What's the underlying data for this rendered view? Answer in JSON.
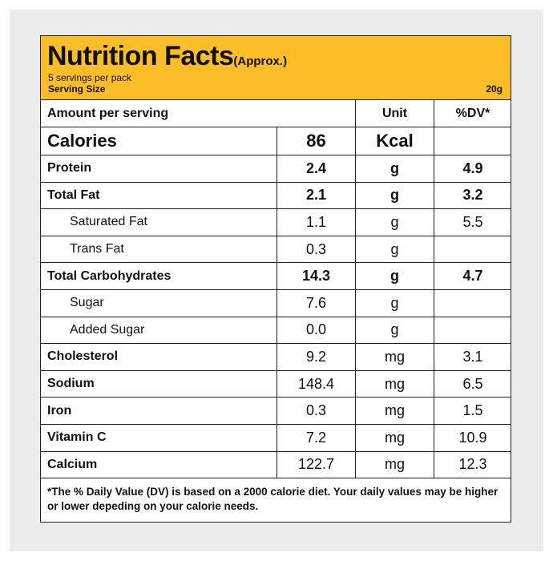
{
  "header": {
    "title": "Nutrition Facts",
    "title_suffix": "(Approx.)",
    "servings_per_pack": "5 servings per pack",
    "serving_size_label": "Serving Size",
    "serving_size_value": "20g",
    "accent_color": "#fbbd28"
  },
  "table": {
    "col_amount": "Amount per serving",
    "col_unit": "Unit",
    "col_dv": "%DV*",
    "calories": {
      "name": "Calories",
      "amount": "86",
      "unit": "Kcal",
      "dv": ""
    },
    "rows": [
      {
        "name": "Protein",
        "amount": "2.4",
        "unit": "g",
        "dv": "4.9"
      },
      {
        "name": "Total Fat",
        "amount": "2.1",
        "unit": "g",
        "dv": "3.2"
      },
      {
        "name": "Saturated Fat",
        "amount": "1.1",
        "unit": "g",
        "dv": "5.5"
      },
      {
        "name": "Trans Fat",
        "amount": "0.3",
        "unit": "g",
        "dv": ""
      },
      {
        "name": "Total Carbohydrates",
        "amount": "14.3",
        "unit": "g",
        "dv": "4.7"
      },
      {
        "name": "Sugar",
        "amount": "7.6",
        "unit": "g",
        "dv": ""
      },
      {
        "name": "Added Sugar",
        "amount": "0.0",
        "unit": "g",
        "dv": ""
      },
      {
        "name": "Cholesterol",
        "amount": "9.2",
        "unit": "mg",
        "dv": "3.1"
      },
      {
        "name": "Sodium",
        "amount": "148.4",
        "unit": "mg",
        "dv": "6.5"
      },
      {
        "name": "Iron",
        "amount": "0.3",
        "unit": "mg",
        "dv": "1.5"
      },
      {
        "name": "Vitamin C",
        "amount": "7.2",
        "unit": "mg",
        "dv": "10.9"
      },
      {
        "name": "Calcium",
        "amount": "122.7",
        "unit": "mg",
        "dv": "12.3"
      }
    ]
  },
  "footnote": "*The % Daily Value (DV) is based on a 2000 calorie diet. Your daily values may be higher or lower depeding on your calorie needs."
}
